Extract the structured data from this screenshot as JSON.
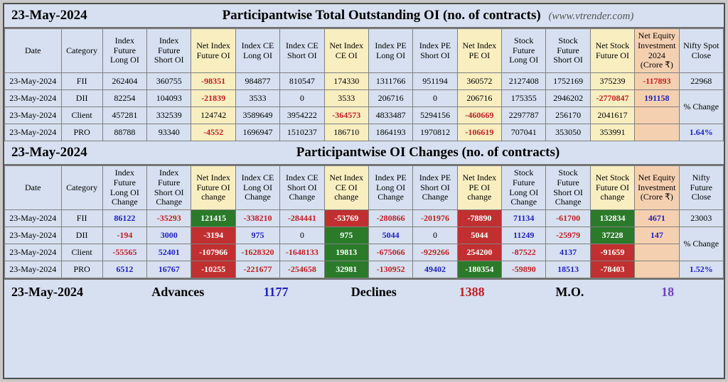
{
  "colors": {
    "page_bg": "#d6e0f0",
    "hl_yellow": "#f8eec0",
    "hl_peach": "#f5d0b0",
    "hl_green": "#2a7a2a",
    "hl_red": "#c03030",
    "txt_red": "#c02020",
    "txt_blue": "#2020c0",
    "txt_purple": "#7040c0"
  },
  "typography": {
    "title_fontsize": 19,
    "header_fontsize": 12,
    "cell_fontsize": 12,
    "footer_fontsize": 18
  },
  "section1": {
    "date": "23-May-2024",
    "title": "Participantwise Total Outstanding OI (no. of contracts)",
    "site": "(www.vtrender.com)",
    "headers": [
      "Date",
      "Category",
      "Index Future Long OI",
      "Index Future Short OI",
      "Net Index Future OI",
      "Index CE Long OI",
      "Index CE Short OI",
      "Net Index CE OI",
      "Index PE Long OI",
      "Index PE Short OI",
      "Net Index PE OI",
      "Stock Future Long OI",
      "Stock Future Short OI",
      "Net Stock Future OI",
      "Net Equity Investment 2024 (Crore ₹)",
      "Nifty Spot Close"
    ],
    "hl_cols": {
      "4": "yellow",
      "7": "yellow",
      "10": "yellow",
      "13": "yellow",
      "14": "peach"
    },
    "rows": [
      {
        "date": "23-May-2024",
        "cat": "FII",
        "cells": [
          {
            "v": "262404"
          },
          {
            "v": "360755"
          },
          {
            "v": "-98351",
            "c": "txt-red"
          },
          {
            "v": "984877"
          },
          {
            "v": "810547"
          },
          {
            "v": "174330"
          },
          {
            "v": "1311766"
          },
          {
            "v": "951194"
          },
          {
            "v": "360572"
          },
          {
            "v": "2127408"
          },
          {
            "v": "1752169"
          },
          {
            "v": "375239"
          },
          {
            "v": "-117893",
            "c": "txt-red"
          },
          {
            "v": "22968"
          }
        ]
      },
      {
        "date": "23-May-2024",
        "cat": "DII",
        "cells": [
          {
            "v": "82254"
          },
          {
            "v": "104093"
          },
          {
            "v": "-21839",
            "c": "txt-red"
          },
          {
            "v": "3533"
          },
          {
            "v": "0"
          },
          {
            "v": "3533"
          },
          {
            "v": "206716"
          },
          {
            "v": "0"
          },
          {
            "v": "206716"
          },
          {
            "v": "175355"
          },
          {
            "v": "2946202"
          },
          {
            "v": "-2770847",
            "c": "txt-red"
          },
          {
            "v": "191158",
            "c": "txt-blue"
          },
          {
            "v": "% Change",
            "merge": "start"
          }
        ]
      },
      {
        "date": "23-May-2024",
        "cat": "Client",
        "cells": [
          {
            "v": "457281"
          },
          {
            "v": "332539"
          },
          {
            "v": "124742"
          },
          {
            "v": "3589649"
          },
          {
            "v": "3954222"
          },
          {
            "v": "-364573",
            "c": "txt-red"
          },
          {
            "v": "4833487"
          },
          {
            "v": "5294156"
          },
          {
            "v": "-460669",
            "c": "txt-red"
          },
          {
            "v": "2297787"
          },
          {
            "v": "256170"
          },
          {
            "v": "2041617"
          },
          {
            "v": ""
          },
          {
            "v": "",
            "merge": "cont"
          }
        ]
      },
      {
        "date": "23-May-2024",
        "cat": "PRO",
        "cells": [
          {
            "v": "88788"
          },
          {
            "v": "93340"
          },
          {
            "v": "-4552",
            "c": "txt-red"
          },
          {
            "v": "1696947"
          },
          {
            "v": "1510237"
          },
          {
            "v": "186710"
          },
          {
            "v": "1864193"
          },
          {
            "v": "1970812"
          },
          {
            "v": "-106619",
            "c": "txt-red"
          },
          {
            "v": "707041"
          },
          {
            "v": "353050"
          },
          {
            "v": "353991"
          },
          {
            "v": ""
          },
          {
            "v": "1.64%",
            "c": "txt-blue"
          }
        ]
      }
    ]
  },
  "section2": {
    "date": "23-May-2024",
    "title": "Participantwise OI Changes (no. of contracts)",
    "headers": [
      "Date",
      "Category",
      "Index Future Long OI Change",
      "Index Future Short OI Change",
      "Net Index Future OI change",
      "Index CE Long OI Change",
      "Index CE Short OI Change",
      "Net Index CE OI change",
      "Index PE Long OI Change",
      "Index PE Short OI Change",
      "Net Index PE OI change",
      "Stock Future Long OI Change",
      "Stock Future Short OI Change",
      "Net Stock Future OI change",
      "Net Equity Investment (Crore ₹)",
      "Nifty Future Close"
    ],
    "hl_cols": {
      "4": "yellow",
      "7": "yellow",
      "10": "yellow",
      "13": "yellow",
      "14": "peach"
    },
    "rows": [
      {
        "date": "23-May-2024",
        "cat": "FII",
        "cells": [
          {
            "v": "86122",
            "c": "txt-blue"
          },
          {
            "v": "-35293",
            "c": "txt-red"
          },
          {
            "v": "121415",
            "bg": "green"
          },
          {
            "v": "-338210",
            "c": "txt-red"
          },
          {
            "v": "-284441",
            "c": "txt-red"
          },
          {
            "v": "-53769",
            "bg": "red"
          },
          {
            "v": "-280866",
            "c": "txt-red"
          },
          {
            "v": "-201976",
            "c": "txt-red"
          },
          {
            "v": "-78890",
            "bg": "red"
          },
          {
            "v": "71134",
            "c": "txt-blue"
          },
          {
            "v": "-61700",
            "c": "txt-red"
          },
          {
            "v": "132834",
            "bg": "green"
          },
          {
            "v": "4671",
            "c": "txt-blue"
          },
          {
            "v": "23003"
          }
        ]
      },
      {
        "date": "23-May-2024",
        "cat": "DII",
        "cells": [
          {
            "v": "-194",
            "c": "txt-red"
          },
          {
            "v": "3000",
            "c": "txt-blue"
          },
          {
            "v": "-3194",
            "bg": "red"
          },
          {
            "v": "975",
            "c": "txt-blue"
          },
          {
            "v": "0"
          },
          {
            "v": "975",
            "bg": "green"
          },
          {
            "v": "5044",
            "c": "txt-blue"
          },
          {
            "v": "0"
          },
          {
            "v": "5044",
            "bg": "red"
          },
          {
            "v": "11249",
            "c": "txt-blue"
          },
          {
            "v": "-25979",
            "c": "txt-red"
          },
          {
            "v": "37228",
            "bg": "green"
          },
          {
            "v": "147",
            "c": "txt-blue"
          },
          {
            "v": "% Change",
            "merge": "start"
          }
        ]
      },
      {
        "date": "23-May-2024",
        "cat": "Client",
        "cells": [
          {
            "v": "-55565",
            "c": "txt-red"
          },
          {
            "v": "52401",
            "c": "txt-blue"
          },
          {
            "v": "-107966",
            "bg": "red"
          },
          {
            "v": "-1628320",
            "c": "txt-red"
          },
          {
            "v": "-1648133",
            "c": "txt-red"
          },
          {
            "v": "19813",
            "bg": "green"
          },
          {
            "v": "-675066",
            "c": "txt-red"
          },
          {
            "v": "-929266",
            "c": "txt-red"
          },
          {
            "v": "254200",
            "bg": "red"
          },
          {
            "v": "-87522",
            "c": "txt-red"
          },
          {
            "v": "4137",
            "c": "txt-blue"
          },
          {
            "v": "-91659",
            "bg": "red"
          },
          {
            "v": ""
          },
          {
            "v": "",
            "merge": "cont"
          }
        ]
      },
      {
        "date": "23-May-2024",
        "cat": "PRO",
        "cells": [
          {
            "v": "6512",
            "c": "txt-blue"
          },
          {
            "v": "16767",
            "c": "txt-blue"
          },
          {
            "v": "-10255",
            "bg": "red"
          },
          {
            "v": "-221677",
            "c": "txt-red"
          },
          {
            "v": "-254658",
            "c": "txt-red"
          },
          {
            "v": "32981",
            "bg": "green"
          },
          {
            "v": "-130952",
            "c": "txt-red"
          },
          {
            "v": "49402",
            "c": "txt-blue"
          },
          {
            "v": "-180354",
            "bg": "green"
          },
          {
            "v": "-59890",
            "c": "txt-red"
          },
          {
            "v": "18513",
            "c": "txt-blue"
          },
          {
            "v": "-78403",
            "bg": "red"
          },
          {
            "v": ""
          },
          {
            "v": "1.52%",
            "c": "txt-blue"
          }
        ]
      }
    ]
  },
  "footer": {
    "date": "23-May-2024",
    "advances_label": "Advances",
    "advances": "1177",
    "declines_label": "Declines",
    "declines": "1388",
    "mo_label": "M.O.",
    "mo": "18"
  }
}
